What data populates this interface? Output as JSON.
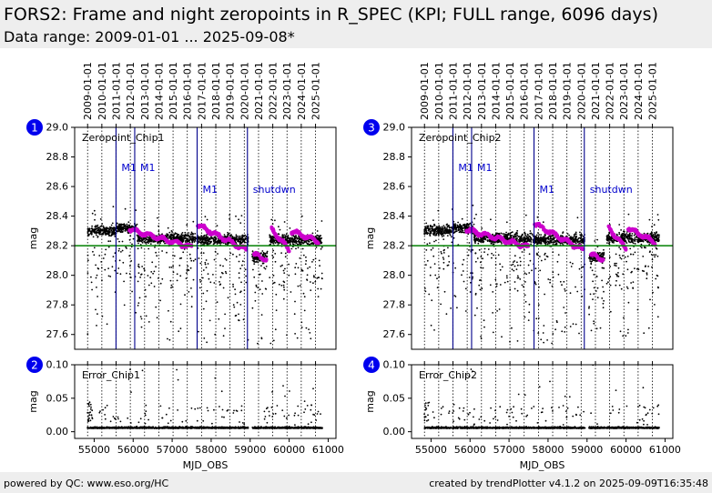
{
  "header": {
    "title": "FORS2: Frame and night zeropoints in R_SPEC (KPI; FULL range, 6096 days)",
    "subtitle": "Data range: 2009-01-01 ... 2025-09-08*"
  },
  "footer": {
    "left": "powered by QC: www.eso.org/HC",
    "right": "created by trendPlotter v4.1.2 on 2025-09-09T16:35:48"
  },
  "colors": {
    "reference_line": "#008000",
    "event_line": "#00008b",
    "event_label": "#0000cd",
    "night_points": "#cc00cc",
    "frame_points": "#000000",
    "badge": "#0000ee"
  },
  "chart_data": [
    {
      "type": "scatter",
      "panel": "zeropoint",
      "badge": "1",
      "label": "Zeropoint_Chip1",
      "xlabel": "MJD_OBS",
      "ylabel": "mag",
      "xlim": [
        54500,
        61200
      ],
      "ylim": [
        27.5,
        29.0
      ],
      "yticks": [
        27.6,
        27.8,
        28.0,
        28.2,
        28.4,
        28.6,
        28.8,
        29.0
      ],
      "ytick_labels": [
        "27.6",
        "27.8",
        "28.0",
        "28.2",
        "28.4",
        "28.6",
        "28.8",
        "29.0"
      ],
      "reference_value": 28.2,
      "events": [
        {
          "mjd": 55560,
          "label": "M1"
        },
        {
          "mjd": 56040,
          "label": "M1"
        },
        {
          "mjd": 57640,
          "label": "M1"
        },
        {
          "mjd": 58930,
          "label": "shutdwn"
        }
      ],
      "night_zeropoints": [
        {
          "start": 55900,
          "end": 57500,
          "from": 28.31,
          "to": 28.19
        },
        {
          "start": 57650,
          "end": 58900,
          "from": 28.34,
          "to": 28.17
        },
        {
          "start": 59100,
          "end": 59420,
          "from": 28.14,
          "to": 28.11
        },
        {
          "start": 59550,
          "end": 60000,
          "from": 28.31,
          "to": 28.17
        },
        {
          "start": 60050,
          "end": 60750,
          "from": 28.3,
          "to": 28.23
        }
      ],
      "frame_clusters": [
        {
          "start": 54830,
          "end": 55550,
          "level": 28.3
        },
        {
          "start": 55560,
          "end": 56100,
          "level": 28.32
        },
        {
          "start": 56100,
          "end": 57600,
          "level": 28.25
        },
        {
          "start": 57620,
          "end": 58950,
          "level": 28.24
        },
        {
          "start": 59050,
          "end": 59450,
          "level": 28.12
        },
        {
          "start": 59500,
          "end": 60850,
          "level": 28.24
        }
      ]
    },
    {
      "type": "scatter",
      "panel": "error",
      "badge": "2",
      "label": "Error_Chip1",
      "xlabel": "MJD_OBS",
      "ylabel": "mag",
      "xlim": [
        54500,
        61200
      ],
      "ylim": [
        -0.01,
        0.1
      ],
      "yticks": [
        0.0,
        0.05,
        0.1
      ],
      "ytick_labels": [
        "0.00",
        "0.05",
        "0.10"
      ],
      "xticks": [
        55000,
        56000,
        57000,
        58000,
        59000,
        60000,
        61000
      ],
      "xtick_labels": [
        "55000",
        "56000",
        "57000",
        "58000",
        "59000",
        "60000",
        "61000"
      ],
      "gap": [
        58950,
        59050
      ],
      "typical_error": 0.005
    },
    {
      "type": "scatter",
      "panel": "zeropoint",
      "badge": "3",
      "label": "Zeropoint_Chip2",
      "xlabel": "MJD_OBS",
      "ylabel": "mag",
      "xlim": [
        54500,
        61200
      ],
      "ylim": [
        27.5,
        29.0
      ],
      "yticks": [
        27.6,
        27.8,
        28.0,
        28.2,
        28.4,
        28.6,
        28.8,
        29.0
      ],
      "ytick_labels": [
        "27.6",
        "27.8",
        "28.0",
        "28.2",
        "28.4",
        "28.6",
        "28.8",
        "29.0"
      ],
      "reference_value": 28.2,
      "events": [
        {
          "mjd": 55560,
          "label": "M1"
        },
        {
          "mjd": 56040,
          "label": "M1"
        },
        {
          "mjd": 57640,
          "label": "M1"
        },
        {
          "mjd": 58930,
          "label": "shutdwn"
        }
      ],
      "night_zeropoints": [
        {
          "start": 55900,
          "end": 57500,
          "from": 28.31,
          "to": 28.19
        },
        {
          "start": 57650,
          "end": 58900,
          "from": 28.35,
          "to": 28.17
        },
        {
          "start": 59100,
          "end": 59420,
          "from": 28.14,
          "to": 28.11
        },
        {
          "start": 59550,
          "end": 60000,
          "from": 28.32,
          "to": 28.18
        },
        {
          "start": 60050,
          "end": 60750,
          "from": 28.32,
          "to": 28.22
        }
      ],
      "frame_clusters": [
        {
          "start": 54830,
          "end": 55550,
          "level": 28.3
        },
        {
          "start": 55560,
          "end": 56100,
          "level": 28.32
        },
        {
          "start": 56100,
          "end": 57600,
          "level": 28.25
        },
        {
          "start": 57620,
          "end": 58950,
          "level": 28.24
        },
        {
          "start": 59050,
          "end": 59450,
          "level": 28.12
        },
        {
          "start": 59500,
          "end": 60850,
          "level": 28.25
        }
      ]
    },
    {
      "type": "scatter",
      "panel": "error",
      "badge": "4",
      "label": "Error_Chip2",
      "xlabel": "MJD_OBS",
      "ylabel": "mag",
      "xlim": [
        54500,
        61200
      ],
      "ylim": [
        -0.01,
        0.1
      ],
      "yticks": [
        0.0,
        0.05,
        0.1
      ],
      "ytick_labels": [
        "0.00",
        "0.05",
        "0.10"
      ],
      "xticks": [
        55000,
        56000,
        57000,
        58000,
        59000,
        60000,
        61000
      ],
      "xtick_labels": [
        "55000",
        "56000",
        "57000",
        "58000",
        "59000",
        "60000",
        "61000"
      ],
      "gap": [
        58950,
        59050
      ],
      "typical_error": 0.005
    }
  ],
  "date_axis": {
    "labels": [
      "2009-01-01",
      "2010-01-01",
      "2011-01-01",
      "2012-01-01",
      "2013-01-01",
      "2014-01-01",
      "2015-01-01",
      "2016-01-01",
      "2017-01-01",
      "2018-01-01",
      "2019-01-01",
      "2020-01-01",
      "2021-01-01",
      "2022-01-01",
      "2023-01-01",
      "2024-01-01",
      "2025-01-01"
    ],
    "mjd": [
      54832,
      55197,
      55562,
      55927,
      56293,
      56658,
      57023,
      57388,
      57754,
      58119,
      58484,
      58849,
      59215,
      59580,
      59945,
      60310,
      60676
    ]
  }
}
